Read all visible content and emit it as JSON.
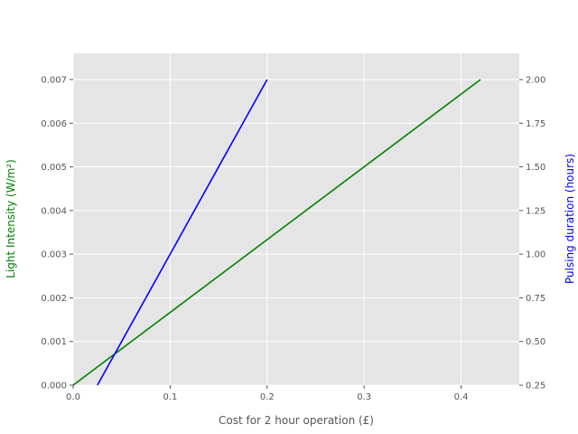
{
  "chart_data": {
    "type": "line",
    "title": "",
    "xlabel": "Cost for 2 hour operation (£)",
    "ylabel_left": "Light Intensity (W/m²)",
    "ylabel_right": "Pulsing duration (hours)",
    "xlim": [
      0,
      0.46
    ],
    "ylim_left": [
      0,
      0.0076
    ],
    "ylim_right": [
      0.25,
      2.15
    ],
    "x_ticks": [
      0.0,
      0.1,
      0.2,
      0.3,
      0.4
    ],
    "x_tick_labels": [
      "0.0",
      "0.1",
      "0.2",
      "0.3",
      "0.4"
    ],
    "y_left_ticks": [
      0,
      0.001,
      0.002,
      0.003,
      0.004,
      0.005,
      0.006,
      0.007
    ],
    "y_left_tick_labels": [
      "0.000",
      "0.001",
      "0.002",
      "0.003",
      "0.004",
      "0.005",
      "0.006",
      "0.007"
    ],
    "y_right_ticks": [
      0.25,
      0.5,
      0.75,
      1.0,
      1.25,
      1.5,
      1.75,
      2.0
    ],
    "y_right_tick_labels": [
      "0.25",
      "0.50",
      "0.75",
      "1.00",
      "1.25",
      "1.50",
      "1.75",
      "2.00"
    ],
    "grid": true,
    "series": [
      {
        "axis": "left",
        "color": "#008000",
        "x": [
          0.0,
          0.42
        ],
        "y": [
          0.0,
          0.007
        ]
      },
      {
        "axis": "right",
        "color": "#0000ff",
        "x": [
          0.025,
          0.2
        ],
        "y": [
          0.25,
          2.0
        ]
      }
    ],
    "colors": {
      "plot_background": "#e5e5e5",
      "grid": "#ffffff",
      "left_label": "#008000",
      "right_label": "#0000ff"
    }
  }
}
